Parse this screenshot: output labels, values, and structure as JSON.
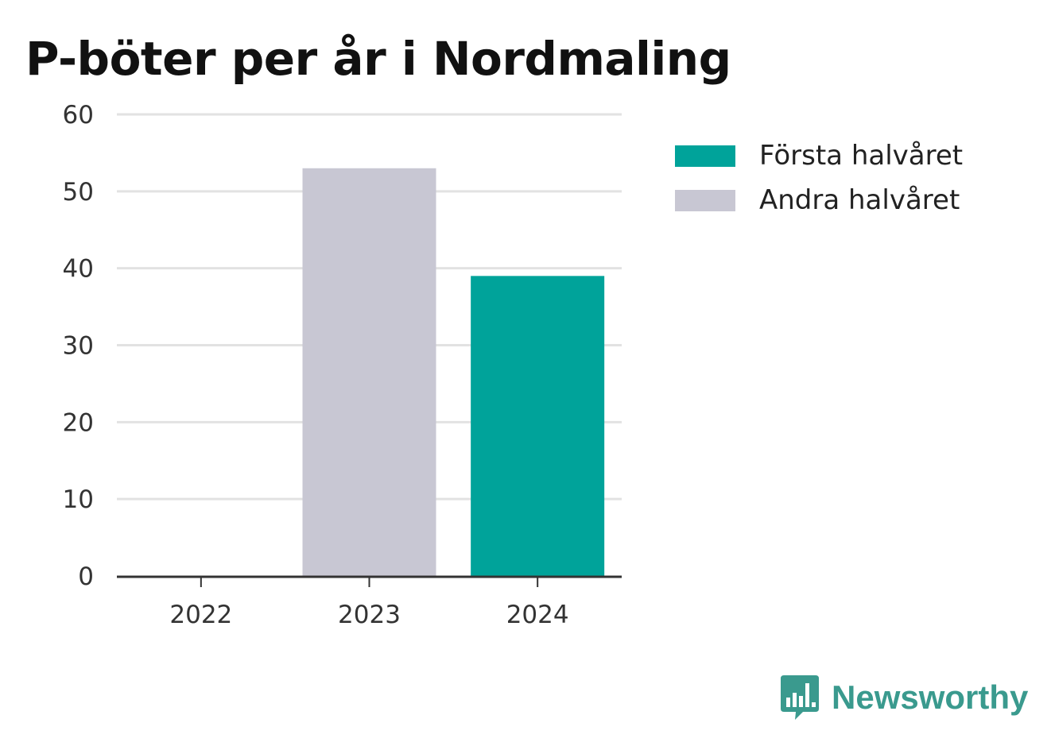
{
  "title": "P-böter per år i Nordmaling",
  "colors": {
    "series_1": "#00a39a",
    "series_2": "#c8c7d3",
    "grid": "#e2e2e2",
    "axis": "#333333",
    "brand": "#3a9a8e"
  },
  "brand": {
    "name": "Newsworthy",
    "icon": "bar-chart-speech-bubble-icon"
  },
  "chart_data": {
    "type": "bar",
    "stacked": true,
    "title": "P-böter per år i Nordmaling",
    "categories": [
      "2022",
      "2023",
      "2024"
    ],
    "series": [
      {
        "name": "Första halvåret",
        "values": [
          0,
          0,
          39
        ],
        "color": "#00a39a"
      },
      {
        "name": "Andra halvåret",
        "values": [
          0,
          53,
          0
        ],
        "color": "#c8c7d3"
      }
    ],
    "ylim": [
      0,
      60
    ],
    "yticks": [
      0,
      10,
      20,
      30,
      40,
      50,
      60
    ],
    "grid": true,
    "legend": "right"
  }
}
